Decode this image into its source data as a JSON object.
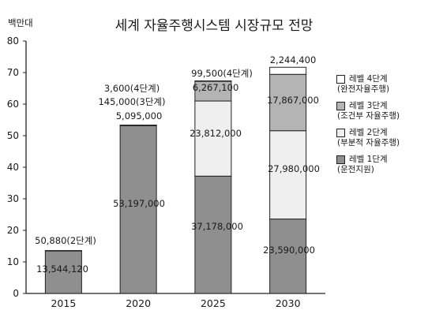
{
  "chart_data": {
    "type": "bar",
    "stacked": true,
    "title": "세계 자율주행시스템 시장규모 전망",
    "ylabel": "백만대",
    "ylim": [
      0,
      80
    ],
    "yticks": [
      0,
      10,
      20,
      30,
      40,
      50,
      60,
      70,
      80
    ],
    "categories": [
      "2015",
      "2020",
      "2025",
      "2030"
    ],
    "series": [
      {
        "name": "레벨 1단계",
        "legend_sub": "(운전지원)",
        "color": "#8f8f8f",
        "values": [
          13.54412,
          53.197,
          37.178,
          23.59
        ],
        "labels": [
          "13,544,120",
          "53,197,000",
          "37,178,000",
          "23,590,000"
        ]
      },
      {
        "name": "레벨 2단계",
        "legend_sub": "(부분적 자율주행)",
        "color": "#efefef",
        "values": [
          0,
          0,
          23.812,
          27.98
        ],
        "labels": [
          "",
          "",
          "23,812,000",
          "27,980,000"
        ]
      },
      {
        "name": "레벨 3단계",
        "legend_sub": "(조건부 자율주행)",
        "color": "#b4b4b4",
        "values": [
          0,
          0.145,
          6.2671,
          17.867
        ],
        "labels": [
          "",
          "145,000(3단계)",
          "6,267,100",
          "17,867,000"
        ]
      },
      {
        "name": "레벨 4단계",
        "legend_sub": "(완전자율주행)",
        "color": "#ffffff",
        "values": [
          0.05088,
          0.0036,
          0.0995,
          2.2444
        ],
        "labels": [
          "50,880(2단계)",
          "3,600(4단계)",
          "99,500(4단계)",
          "2,244,400"
        ]
      }
    ],
    "extra_labels": [
      "",
      "5,095,000",
      "",
      ""
    ],
    "grid": false,
    "legend_position": "right"
  }
}
